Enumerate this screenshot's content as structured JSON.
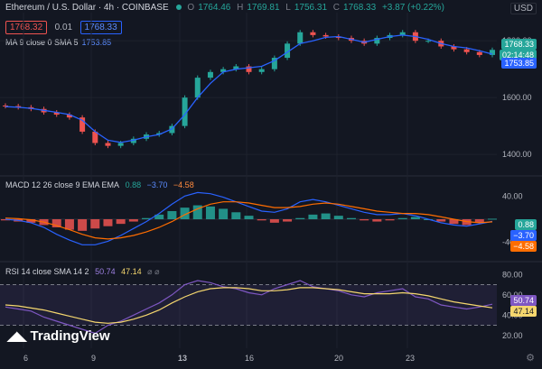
{
  "header": {
    "symbol": "Ethereum / U.S. Dollar · 4h · COINBASE",
    "o_label": "O",
    "o_val": "1764.46",
    "h_label": "H",
    "h_val": "1769.81",
    "l_label": "L",
    "l_val": "1756.31",
    "c_label": "C",
    "c_val": "1768.33",
    "change": "+3.87 (+0.22%)",
    "bid": "1768.32",
    "spread": "0.01",
    "ask": "1768.33",
    "currency": "USD"
  },
  "ma_legend": {
    "label": "MA 9 close 0 SMA 5",
    "value": "1753.85"
  },
  "macd_legend": {
    "label": "MACD 12 26 close 9 EMA EMA",
    "hist": "0.88",
    "macd": "−3.70",
    "signal": "−4.58"
  },
  "rsi_legend": {
    "label": "RSI 14 close SMA 14 2",
    "rsi": "50.74",
    "sma": "47.14",
    "extra": "⌀ ⌀"
  },
  "price_tags": {
    "last": "1768.33",
    "countdown": "02:14:48",
    "ma": "1753.85"
  },
  "macd_tags": {
    "hist": "0.88",
    "macd": "−3.70",
    "signal": "−4.58"
  },
  "rsi_tags": {
    "rsi": "50.74",
    "sma": "47.14"
  },
  "branding": "TradingView",
  "x_labels": [
    "6",
    "9",
    "13",
    "16",
    "20",
    "23"
  ],
  "colors": {
    "up": "#26a69a",
    "down": "#ef5350",
    "ma": "#2962ff",
    "macd": "#2962ff",
    "signal": "#ff6d00",
    "rsi": "#7e57c2",
    "rsi_sma": "#f5d76e",
    "bg": "#131722"
  },
  "chart_data": [
    {
      "type": "candlestick",
      "title": "Ethereum / U.S. Dollar · 4h · COINBASE",
      "y_ticks": [
        1400,
        1600,
        1800
      ],
      "ylim": [
        1340,
        1880
      ],
      "x_ticks": [
        "6",
        "9",
        "13",
        "16",
        "20",
        "23"
      ],
      "ma_series": [
        1568,
        1566,
        1562,
        1555,
        1548,
        1540,
        1520,
        1480,
        1450,
        1442,
        1450,
        1462,
        1470,
        1490,
        1540,
        1600,
        1650,
        1690,
        1700,
        1705,
        1710,
        1730,
        1760,
        1790,
        1800,
        1812,
        1815,
        1805,
        1795,
        1805,
        1815,
        1820,
        1815,
        1805,
        1790,
        1780,
        1775,
        1765,
        1753
      ],
      "close_series": [
        1570,
        1566,
        1560,
        1548,
        1540,
        1530,
        1480,
        1440,
        1430,
        1440,
        1455,
        1470,
        1475,
        1500,
        1600,
        1670,
        1690,
        1700,
        1710,
        1690,
        1700,
        1740,
        1790,
        1830,
        1820,
        1815,
        1810,
        1800,
        1790,
        1810,
        1820,
        1830,
        1800,
        1800,
        1780,
        1770,
        1760,
        1750,
        1768
      ]
    },
    {
      "type": "bar",
      "title": "MACD 12 26 close 9 EMA EMA",
      "y_ticks": [
        40,
        -40
      ],
      "ylim": [
        -70,
        70
      ],
      "histogram": [
        -2,
        -4,
        -6,
        -10,
        -14,
        -18,
        -20,
        -16,
        -12,
        -8,
        -4,
        2,
        8,
        14,
        20,
        24,
        22,
        18,
        12,
        6,
        -2,
        -6,
        -4,
        2,
        8,
        10,
        6,
        2,
        -2,
        -4,
        -2,
        2,
        4,
        0,
        -4,
        -8,
        -10,
        -6,
        0.88
      ],
      "macd_line": [
        0,
        -2,
        -6,
        -14,
        -26,
        -36,
        -44,
        -44,
        -38,
        -28,
        -16,
        -4,
        10,
        26,
        40,
        46,
        44,
        38,
        30,
        22,
        14,
        12,
        18,
        30,
        34,
        30,
        24,
        18,
        12,
        8,
        8,
        10,
        6,
        0,
        -6,
        -10,
        -12,
        -8,
        -3.7
      ],
      "signal_line": [
        2,
        1,
        -1,
        -5,
        -11,
        -18,
        -26,
        -32,
        -34,
        -32,
        -28,
        -22,
        -14,
        -4,
        8,
        18,
        26,
        30,
        30,
        28,
        24,
        20,
        20,
        22,
        26,
        28,
        26,
        22,
        18,
        14,
        12,
        10,
        10,
        8,
        4,
        0,
        -4,
        -6,
        -4.58
      ]
    },
    {
      "type": "line",
      "title": "RSI 14 close SMA 14 2",
      "y_ticks": [
        80,
        60,
        40,
        20
      ],
      "ylim": [
        10,
        90
      ],
      "rsi": [
        48,
        46,
        44,
        38,
        34,
        30,
        26,
        22,
        30,
        34,
        40,
        46,
        52,
        60,
        70,
        74,
        72,
        68,
        66,
        62,
        60,
        66,
        70,
        74,
        68,
        66,
        64,
        60,
        58,
        62,
        64,
        66,
        58,
        56,
        50,
        48,
        46,
        48,
        50.74
      ],
      "rsi_sma": [
        50,
        49,
        47,
        45,
        42,
        39,
        36,
        33,
        32,
        33,
        36,
        40,
        45,
        52,
        58,
        63,
        66,
        67,
        67,
        66,
        64,
        64,
        65,
        67,
        67,
        66,
        65,
        63,
        61,
        61,
        61,
        62,
        61,
        59,
        56,
        53,
        51,
        49,
        47.14
      ]
    }
  ]
}
